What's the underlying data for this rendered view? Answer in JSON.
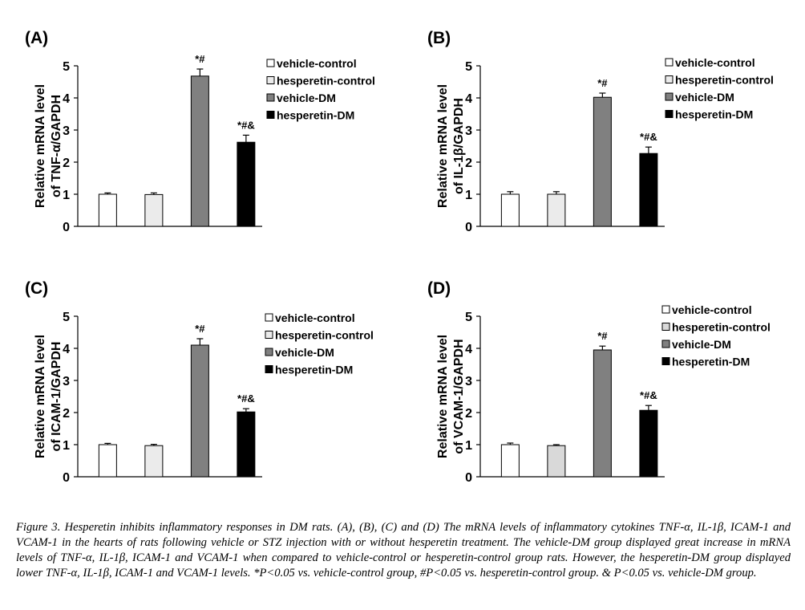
{
  "chart_data": [
    {
      "type": "bar",
      "panel_label": "(A)",
      "ylabel": [
        "Relative mRNA level",
        "of TNF-α/GAPDH"
      ],
      "ylim": [
        0,
        5
      ],
      "yticks": [
        0,
        1,
        2,
        3,
        4,
        5
      ],
      "series": [
        {
          "name": "vehicle-control",
          "color": "#ffffff",
          "values": [
            1.0
          ],
          "errors": [
            0.04
          ]
        },
        {
          "name": "hesperetin-control",
          "color": "#ebebeb",
          "values": [
            0.99
          ],
          "errors": [
            0.05
          ]
        },
        {
          "name": "vehicle-DM",
          "color": "#808080",
          "values": [
            4.68
          ],
          "errors": [
            0.22
          ],
          "annotation": "*#"
        },
        {
          "name": "hesperetin-DM",
          "color": "#000000",
          "values": [
            2.62
          ],
          "errors": [
            0.22
          ],
          "annotation": "*#&"
        }
      ]
    },
    {
      "type": "bar",
      "panel_label": "(B)",
      "ylabel": [
        "Relative mRNA level",
        "of IL-1β/GAPDH"
      ],
      "ylim": [
        0,
        5
      ],
      "yticks": [
        0,
        1,
        2,
        3,
        4,
        5
      ],
      "series": [
        {
          "name": "vehicle-control",
          "color": "#ffffff",
          "values": [
            1.0
          ],
          "errors": [
            0.08
          ]
        },
        {
          "name": "hesperetin-control",
          "color": "#ebebeb",
          "values": [
            1.0
          ],
          "errors": [
            0.08
          ]
        },
        {
          "name": "vehicle-DM",
          "color": "#808080",
          "values": [
            4.02
          ],
          "errors": [
            0.13
          ],
          "annotation": "*#"
        },
        {
          "name": "hesperetin-DM",
          "color": "#000000",
          "values": [
            2.27
          ],
          "errors": [
            0.2
          ],
          "annotation": "*#&"
        }
      ]
    },
    {
      "type": "bar",
      "panel_label": "(C)",
      "ylabel": [
        "Relative mRNA level",
        "of ICAM-1/GAPDH"
      ],
      "ylim": [
        0,
        5
      ],
      "yticks": [
        0,
        1,
        2,
        3,
        4,
        5
      ],
      "series": [
        {
          "name": "vehicle-control",
          "color": "#ffffff",
          "values": [
            1.0
          ],
          "errors": [
            0.04
          ]
        },
        {
          "name": "hesperetin-control",
          "color": "#ebebeb",
          "values": [
            0.97
          ],
          "errors": [
            0.04
          ]
        },
        {
          "name": "vehicle-DM",
          "color": "#808080",
          "values": [
            4.1
          ],
          "errors": [
            0.2
          ],
          "annotation": "*#"
        },
        {
          "name": "hesperetin-DM",
          "color": "#000000",
          "values": [
            2.02
          ],
          "errors": [
            0.1
          ],
          "annotation": "*#&"
        }
      ]
    },
    {
      "type": "bar",
      "panel_label": "(D)",
      "ylabel": [
        "Relative mRNA level",
        "of VCAM-1/GAPDH"
      ],
      "ylim": [
        0,
        5
      ],
      "yticks": [
        0,
        1,
        2,
        3,
        4,
        5
      ],
      "series": [
        {
          "name": "vehicle-control",
          "color": "#ffffff",
          "values": [
            1.0
          ],
          "errors": [
            0.05
          ]
        },
        {
          "name": "hesperetin-control",
          "color": "#d9d9d9",
          "values": [
            0.97
          ],
          "errors": [
            0.03
          ]
        },
        {
          "name": "vehicle-DM",
          "color": "#808080",
          "values": [
            3.95
          ],
          "errors": [
            0.12
          ],
          "annotation": "*#"
        },
        {
          "name": "hesperetin-DM",
          "color": "#000000",
          "values": [
            2.07
          ],
          "errors": [
            0.15
          ],
          "annotation": "*#&"
        }
      ]
    }
  ],
  "caption": "Figure 3. Hesperetin inhibits inflammatory responses in DM rats. (A), (B), (C) and (D) The mRNA levels of inflammatory cytokines TNF-α, IL-1β, ICAM-1 and VCAM-1 in the hearts of rats following vehicle or STZ injection with or without hesperetin treatment. The vehicle-DM group displayed great increase in mRNA levels of TNF-α, IL-1β, ICAM-1 and VCAM-1 when compared to vehicle-control or hesperetin-control group rats. However, the hesperetin-DM group displayed lower TNF-α, IL-1β, ICAM-1 and VCAM-1 levels. *P<0.05 vs. vehicle-control group, #P<0.05 vs. hesperetin-control group. & P<0.05 vs. vehicle-DM group."
}
